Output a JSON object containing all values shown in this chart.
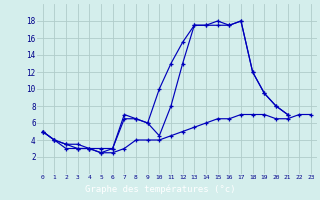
{
  "xlabel": "Graphe des températures (°c)",
  "bg_color": "#d4eeec",
  "grid_color": "#b0ccca",
  "line_color": "#0000bb",
  "bar_color": "#00008b",
  "text_color": "#00008b",
  "hours": [
    0,
    1,
    2,
    3,
    4,
    5,
    6,
    7,
    8,
    9,
    10,
    11,
    12,
    13,
    14,
    15,
    16,
    17,
    18,
    19,
    20,
    21,
    22,
    23
  ],
  "series1": [
    5,
    4,
    3.5,
    3,
    3,
    3,
    3,
    7,
    6.5,
    6,
    10,
    13,
    15.5,
    17.5,
    17.5,
    18,
    17.5,
    18,
    12,
    9.5,
    8,
    7,
    null,
    null
  ],
  "series2": [
    5,
    4,
    3.5,
    3.5,
    3,
    2.5,
    2.5,
    3,
    4,
    4,
    4,
    4.5,
    5,
    5.5,
    6,
    6.5,
    6.5,
    7,
    7,
    7,
    6.5,
    6.5,
    7,
    7
  ],
  "series3": [
    5,
    4,
    3,
    3,
    3,
    2.5,
    3,
    6.5,
    6.5,
    6,
    4.5,
    8,
    13,
    17.5,
    17.5,
    17.5,
    17.5,
    18,
    12,
    9.5,
    8,
    7,
    null,
    null
  ],
  "ylim": [
    0,
    20
  ],
  "xlim_min": -0.5,
  "xlim_max": 23.5,
  "yticks": [
    2,
    4,
    6,
    8,
    10,
    12,
    14,
    16,
    18
  ],
  "xticks": [
    0,
    1,
    2,
    3,
    4,
    5,
    6,
    7,
    8,
    9,
    10,
    11,
    12,
    13,
    14,
    15,
    16,
    17,
    18,
    19,
    20,
    21,
    22,
    23
  ]
}
